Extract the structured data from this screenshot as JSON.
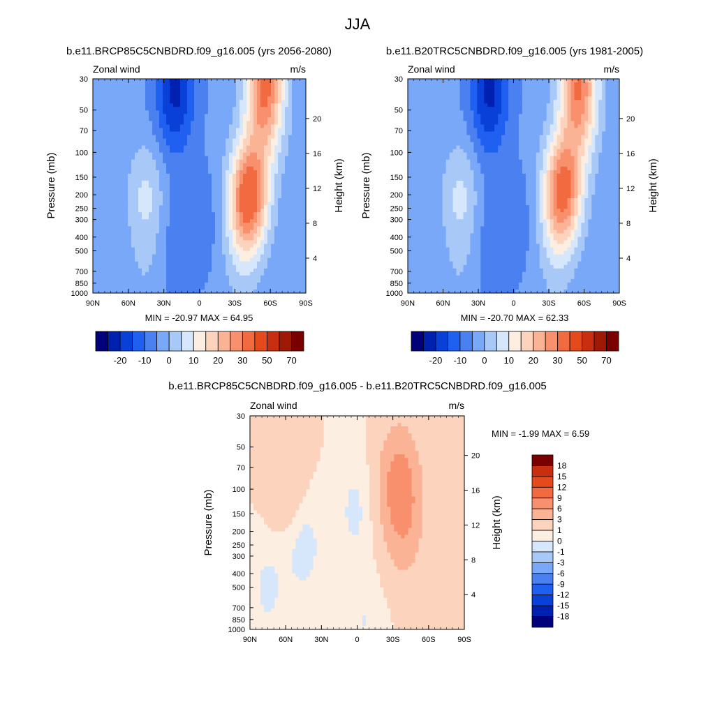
{
  "figure_title": "JJA",
  "chart_data": [
    {
      "type": "heatmap",
      "id": "future",
      "title": "b.e11.BRCP85C5CNBDRD.f09_g16.005 (yrs 2056-2080)",
      "left_label": "Zonal wind",
      "right_label": "m/s",
      "ylabel": "Pressure (mb)",
      "y2label": "Height (km)",
      "x_ticks": [
        "90N",
        "60N",
        "30N",
        "0",
        "30S",
        "60S",
        "90S"
      ],
      "y_ticks": [
        "30",
        "50",
        "70",
        "100",
        "150",
        "200",
        "250",
        "300",
        "400",
        "500",
        "700",
        "850",
        "1000"
      ],
      "y2_ticks": [
        "20",
        "16",
        "12",
        "8",
        "4"
      ],
      "min_max": "MIN = -20.97  MAX = 64.95",
      "min": -20.97,
      "max": 64.95,
      "colorbar_labels": [
        "-20",
        "-10",
        "0",
        "10",
        "20",
        "30",
        "50",
        "70"
      ],
      "blobs": [
        {
          "lat": -40,
          "p": 230,
          "v": 28
        },
        {
          "lat": -45,
          "p": 160,
          "v": 14
        },
        {
          "lat": -55,
          "p": 30,
          "v": 30
        },
        {
          "lat": -57,
          "p": 60,
          "v": 10
        },
        {
          "lat": -35,
          "p": 600,
          "v": 4
        },
        {
          "lat": 20,
          "p": 30,
          "v": -14
        },
        {
          "lat": 22,
          "p": 60,
          "v": -6
        },
        {
          "lat": 18,
          "p": 500,
          "v": -5
        },
        {
          "lat": 45,
          "p": 200,
          "v": 10
        },
        {
          "lat": 45,
          "p": 700,
          "v": 3
        },
        {
          "lat": -5,
          "p": 300,
          "v": -3
        }
      ],
      "background": -4
    },
    {
      "type": "heatmap",
      "id": "present",
      "title": "b.e11.B20TRC5CNBDRD.f09_g16.005 (yrs 1981-2005)",
      "left_label": "Zonal wind",
      "right_label": "m/s",
      "ylabel": "Pressure (mb)",
      "y2label": "Height (km)",
      "x_ticks": [
        "90N",
        "60N",
        "30N",
        "0",
        "30S",
        "60S",
        "90S"
      ],
      "y_ticks": [
        "30",
        "50",
        "70",
        "100",
        "150",
        "200",
        "250",
        "300",
        "400",
        "500",
        "700",
        "850",
        "1000"
      ],
      "y2_ticks": [
        "20",
        "16",
        "12",
        "8",
        "4"
      ],
      "min_max": "MIN = -20.70  MAX = 62.33",
      "min": -20.7,
      "max": 62.33,
      "colorbar_labels": [
        "-20",
        "-10",
        "0",
        "10",
        "20",
        "30",
        "50",
        "70"
      ],
      "blobs": [
        {
          "lat": -40,
          "p": 210,
          "v": 26
        },
        {
          "lat": -45,
          "p": 150,
          "v": 13
        },
        {
          "lat": -55,
          "p": 30,
          "v": 28
        },
        {
          "lat": -57,
          "p": 60,
          "v": 10
        },
        {
          "lat": -35,
          "p": 600,
          "v": 4
        },
        {
          "lat": 20,
          "p": 30,
          "v": -14
        },
        {
          "lat": 22,
          "p": 60,
          "v": -6
        },
        {
          "lat": 18,
          "p": 500,
          "v": -5
        },
        {
          "lat": 45,
          "p": 200,
          "v": 10
        },
        {
          "lat": 45,
          "p": 700,
          "v": 3
        },
        {
          "lat": -5,
          "p": 300,
          "v": -3
        }
      ],
      "background": -4
    },
    {
      "type": "heatmap",
      "id": "difference",
      "title": "b.e11.BRCP85C5CNBDRD.f09_g16.005 - b.e11.B20TRC5CNBDRD.f09_g16.005",
      "left_label": "Zonal wind",
      "right_label": "m/s",
      "ylabel": "Pressure (mb)",
      "y2label": "Height (km)",
      "x_ticks": [
        "90N",
        "60N",
        "30N",
        "0",
        "30S",
        "60S",
        "90S"
      ],
      "y_ticks": [
        "30",
        "50",
        "70",
        "100",
        "150",
        "200",
        "250",
        "300",
        "400",
        "500",
        "700",
        "850",
        "1000"
      ],
      "y2_ticks": [
        "20",
        "16",
        "12",
        "8",
        "4"
      ],
      "min_max": "MIN =  -1.99  MAX =   6.59",
      "min": -1.99,
      "max": 6.59,
      "colorbar_labels": [
        "18",
        "15",
        "12",
        "9",
        "6",
        "3",
        "1",
        "0",
        "-1",
        "-3",
        "-6",
        "-9",
        "-12",
        "-15",
        "-18"
      ],
      "blobs": [
        {
          "lat": -35,
          "p": 90,
          "v": 6
        },
        {
          "lat": -40,
          "p": 180,
          "v": 3
        },
        {
          "lat": 45,
          "p": 250,
          "v": -1.5
        },
        {
          "lat": 2,
          "p": 140,
          "v": -1.2
        },
        {
          "lat": 75,
          "p": 500,
          "v": -1.2
        },
        {
          "lat": 60,
          "p": 80,
          "v": 2
        },
        {
          "lat": -5,
          "p": 900,
          "v": -1
        }
      ],
      "background": 1
    }
  ],
  "colors": {
    "full_palette": [
      "#00007a",
      "#0020b0",
      "#0840d8",
      "#2060f0",
      "#4a80f0",
      "#7aa8f8",
      "#a8c8f8",
      "#d6e6fb",
      "#fcefe2",
      "#fcd3bd",
      "#fbb396",
      "#f8906e",
      "#f26a40",
      "#e44a1c",
      "#c82e10",
      "#9e1a06",
      "#7a0000"
    ],
    "diff_palette": [
      "#00007a",
      "#0020b0",
      "#0840d8",
      "#2060f0",
      "#4a80f0",
      "#7aa8f8",
      "#a8c8f8",
      "#d6e6fb",
      "#fcefe2",
      "#fcd3bd",
      "#fbb396",
      "#f8906e",
      "#f26a40",
      "#e44a1c",
      "#c82e10",
      "#7a0000"
    ]
  }
}
